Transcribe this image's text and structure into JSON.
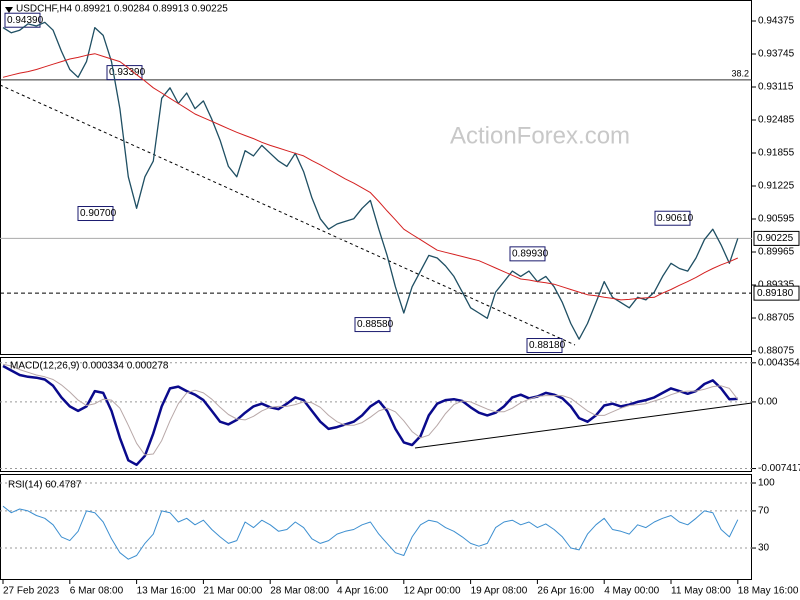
{
  "watermark": "ActionForex.com",
  "chart_data": [
    {
      "type": "line",
      "title": "USDCHF,H4 0.89921 0.90284 0.89913 0.90225",
      "categories": [
        "27 Feb 2023",
        null,
        null,
        null,
        null,
        null,
        null,
        null,
        "6 Mar 08:00",
        null,
        null,
        null,
        null,
        null,
        null,
        null,
        "13 Mar 16:00",
        null,
        null,
        null,
        null,
        null,
        null,
        null,
        "21 Mar 00:00",
        null,
        null,
        null,
        null,
        null,
        null,
        null,
        "28 Mar 08:00",
        null,
        null,
        null,
        null,
        null,
        null,
        null,
        "4 Apr 16:00",
        null,
        null,
        null,
        null,
        null,
        null,
        null,
        "12 Apr 00:00",
        null,
        null,
        null,
        null,
        null,
        null,
        null,
        "19 Apr 08:00",
        null,
        null,
        null,
        null,
        null,
        null,
        null,
        "26 Apr 16:00",
        null,
        null,
        null,
        null,
        null,
        null,
        null,
        "4 May 00:00",
        null,
        null,
        null,
        null,
        null,
        null,
        null,
        "11 May 08:00",
        null,
        null,
        null,
        null,
        null,
        null,
        null,
        "18 May 16:00"
      ],
      "series": [
        {
          "color": "#1f4f63",
          "values": [
            0.9425,
            0.9415,
            0.942,
            0.9432,
            0.9428,
            0.9435,
            0.942,
            0.938,
            0.9345,
            0.933,
            0.936,
            0.9425,
            0.941,
            0.936,
            0.927,
            0.914,
            0.908,
            0.914,
            0.917,
            0.929,
            0.931,
            0.928,
            0.93,
            0.927,
            0.9285,
            0.925,
            0.921,
            0.916,
            0.914,
            0.919,
            0.918,
            0.92,
            0.9185,
            0.917,
            0.916,
            0.9185,
            0.915,
            0.91,
            0.906,
            0.904,
            0.905,
            0.9055,
            0.906,
            0.908,
            0.9095,
            0.904,
            0.899,
            0.893,
            0.888,
            0.893,
            0.896,
            0.899,
            0.8985,
            0.897,
            0.895,
            0.892,
            0.889,
            0.888,
            0.887,
            0.892,
            0.894,
            0.896,
            0.895,
            0.896,
            0.894,
            0.895,
            0.893,
            0.89,
            0.886,
            0.883,
            0.886,
            0.89,
            0.894,
            0.891,
            0.89,
            0.889,
            0.891,
            0.8905,
            0.892,
            0.895,
            0.8975,
            0.8965,
            0.896,
            0.8985,
            0.902,
            0.904,
            0.901,
            0.8975,
            0.90225
          ]
        },
        {
          "color": "#d42020",
          "values": [
            0.933,
            0.9334,
            0.9338,
            0.9341,
            0.9345,
            0.935,
            0.9355,
            0.936,
            0.9365,
            0.9368,
            0.9372,
            0.9375,
            0.937,
            0.9365,
            0.936,
            0.9348,
            0.9335,
            0.9323,
            0.931,
            0.93,
            0.929,
            0.928,
            0.927,
            0.926,
            0.9253,
            0.9246,
            0.9239,
            0.9232,
            0.9225,
            0.9219,
            0.9213,
            0.9206,
            0.92,
            0.9195,
            0.919,
            0.9185,
            0.918,
            0.9171,
            0.9163,
            0.9154,
            0.9145,
            0.9136,
            0.9128,
            0.9119,
            0.911,
            0.9093,
            0.9075,
            0.9058,
            0.904,
            0.903,
            0.902,
            0.901,
            0.9,
            0.8996,
            0.8992,
            0.8988,
            0.8984,
            0.898,
            0.8973,
            0.8966,
            0.8959,
            0.8952,
            0.8945,
            0.8943,
            0.894,
            0.8938,
            0.8935,
            0.893,
            0.8925,
            0.892,
            0.8915,
            0.8913,
            0.891,
            0.8908,
            0.8905,
            0.8906,
            0.8908,
            0.8909,
            0.891,
            0.8918,
            0.8925,
            0.8933,
            0.894,
            0.8948,
            0.8957,
            0.8965,
            0.8972,
            0.8978,
            0.8985
          ]
        }
      ],
      "ylim": [
        0.87999,
        0.94776
      ],
      "yticks": [
        0.94375,
        0.93745,
        0.93115,
        0.92485,
        0.91855,
        0.91225,
        0.90595,
        0.89965,
        0.89335,
        0.88705,
        0.88075
      ],
      "last_price": 0.90225,
      "support": {
        "value": 0.8918,
        "label": "0.89180"
      },
      "fib_line": 0.9325,
      "fib_label": "38.2",
      "annotations": [
        {
          "value": 0.9439,
          "label": "0.94390"
        },
        {
          "value": 0.9339,
          "label": "0.93390"
        },
        {
          "value": 0.907,
          "label": "0.90700"
        },
        {
          "value": 0.8858,
          "label": "0.88580"
        },
        {
          "value": 0.8993,
          "label": "0.89930"
        },
        {
          "value": 0.8818,
          "label": "0.88180"
        },
        {
          "value": 0.9061,
          "label": "0.90610"
        }
      ]
    },
    {
      "type": "line",
      "title": "MACD(12,26,9) 0.000334 0.000278",
      "series": [
        {
          "color": "#0a0a8c",
          "values": [
            0.004,
            0.0035,
            0.003,
            0.0028,
            0.0027,
            0.0025,
            0.0018,
            0.0005,
            -0.0005,
            -0.001,
            -0.0005,
            0.0012,
            0.001,
            -0.001,
            -0.004,
            -0.0065,
            -0.007,
            -0.006,
            -0.0035,
            -0.0005,
            0.0015,
            0.0017,
            0.0012,
            0.0008,
            0.0002,
            -0.001,
            -0.0022,
            -0.0025,
            -0.002,
            -0.0012,
            -0.0005,
            -0.0002,
            -0.0006,
            -0.0008,
            -0.0002,
            0.0005,
            0.0002,
            -0.001,
            -0.0022,
            -0.003,
            -0.0028,
            -0.0025,
            -0.0022,
            -0.0015,
            -0.0005,
            0.0001,
            -0.001,
            -0.003,
            -0.0045,
            -0.0048,
            -0.0038,
            -0.0015,
            -0.0002,
            0.0002,
            0.0003,
            0.0001,
            -0.0006,
            -0.0012,
            -0.0015,
            -0.0012,
            -0.0005,
            0.0005,
            0.0008,
            0.0004,
            0.0006,
            0.001,
            0.0008,
            0.0004,
            -0.0005,
            -0.0018,
            -0.0022,
            -0.0015,
            -0.0004,
            -0.0002,
            -0.0005,
            -0.0003,
            0,
            0.0002,
            0.0005,
            0.001,
            0.0015,
            0.0012,
            0.0009,
            0.0012,
            0.002,
            0.0024,
            0.0015,
            0.0003,
            0.000334
          ]
        },
        {
          "color": "#b8a8a8",
          "values": [
            0.0042,
            0.004,
            0.0036,
            0.0033,
            0.003,
            0.0028,
            0.0025,
            0.0019,
            0.0011,
            0.0002,
            -0.0004,
            -0.0002,
            0.0003,
            0.0002,
            -0.0007,
            -0.0026,
            -0.0046,
            -0.0059,
            -0.0058,
            -0.0043,
            -0.0021,
            -0.0002,
            0.001,
            0.0013,
            0.001,
            0.0003,
            -0.0006,
            -0.0014,
            -0.0019,
            -0.002,
            -0.0016,
            -0.001,
            -0.0006,
            -0.0005,
            -0.0005,
            -0.0003,
            0,
            -0.0001,
            -0.0006,
            -0.0015,
            -0.0022,
            -0.0026,
            -0.0026,
            -0.0023,
            -0.0017,
            -0.001,
            -0.0007,
            -0.0011,
            -0.0021,
            -0.0033,
            -0.004,
            -0.0037,
            -0.0026,
            -0.0013,
            -0.0003,
            0.0001,
            0,
            -0.0004,
            -0.0008,
            -0.0011,
            -0.0011,
            -0.0007,
            -0.0001,
            0.0003,
            0.0006,
            0.0007,
            0.0007,
            0.0007,
            0.0004,
            -0.0003,
            -0.001,
            -0.0015,
            -0.0015,
            -0.0011,
            -0.0007,
            -0.0004,
            -0.0003,
            -0.0002,
            0.0001,
            0.0004,
            0.0008,
            0.0011,
            0.0012,
            0.0012,
            0.0014,
            0.0017,
            0.0018,
            0.0015,
            0.000278
          ]
        }
      ],
      "ylim": [
        -0.0078,
        0.005
      ],
      "yticks": [
        0.004354,
        {
          "value": 0,
          "label": "0.00"
        },
        -0.007417
      ]
    },
    {
      "type": "line",
      "title": "RSI(14) 60.4787",
      "series": [
        {
          "color": "#3d8fd0",
          "values": [
            75,
            68,
            72,
            70,
            65,
            62,
            55,
            42,
            38,
            48,
            70,
            68,
            58,
            40,
            25,
            18,
            22,
            35,
            45,
            70,
            68,
            58,
            62,
            55,
            60,
            50,
            42,
            35,
            38,
            58,
            52,
            60,
            55,
            48,
            50,
            58,
            52,
            40,
            35,
            38,
            45,
            48,
            50,
            55,
            58,
            45,
            35,
            25,
            22,
            42,
            55,
            60,
            58,
            52,
            48,
            42,
            35,
            32,
            35,
            52,
            58,
            60,
            55,
            58,
            52,
            56,
            50,
            42,
            30,
            28,
            45,
            55,
            62,
            50,
            48,
            45,
            55,
            52,
            58,
            62,
            65,
            58,
            55,
            62,
            70,
            68,
            50,
            42,
            60.4787
          ]
        }
      ],
      "ylim": [
        -4.4,
        109.7
      ],
      "yticks": [
        100,
        70,
        30
      ]
    }
  ]
}
